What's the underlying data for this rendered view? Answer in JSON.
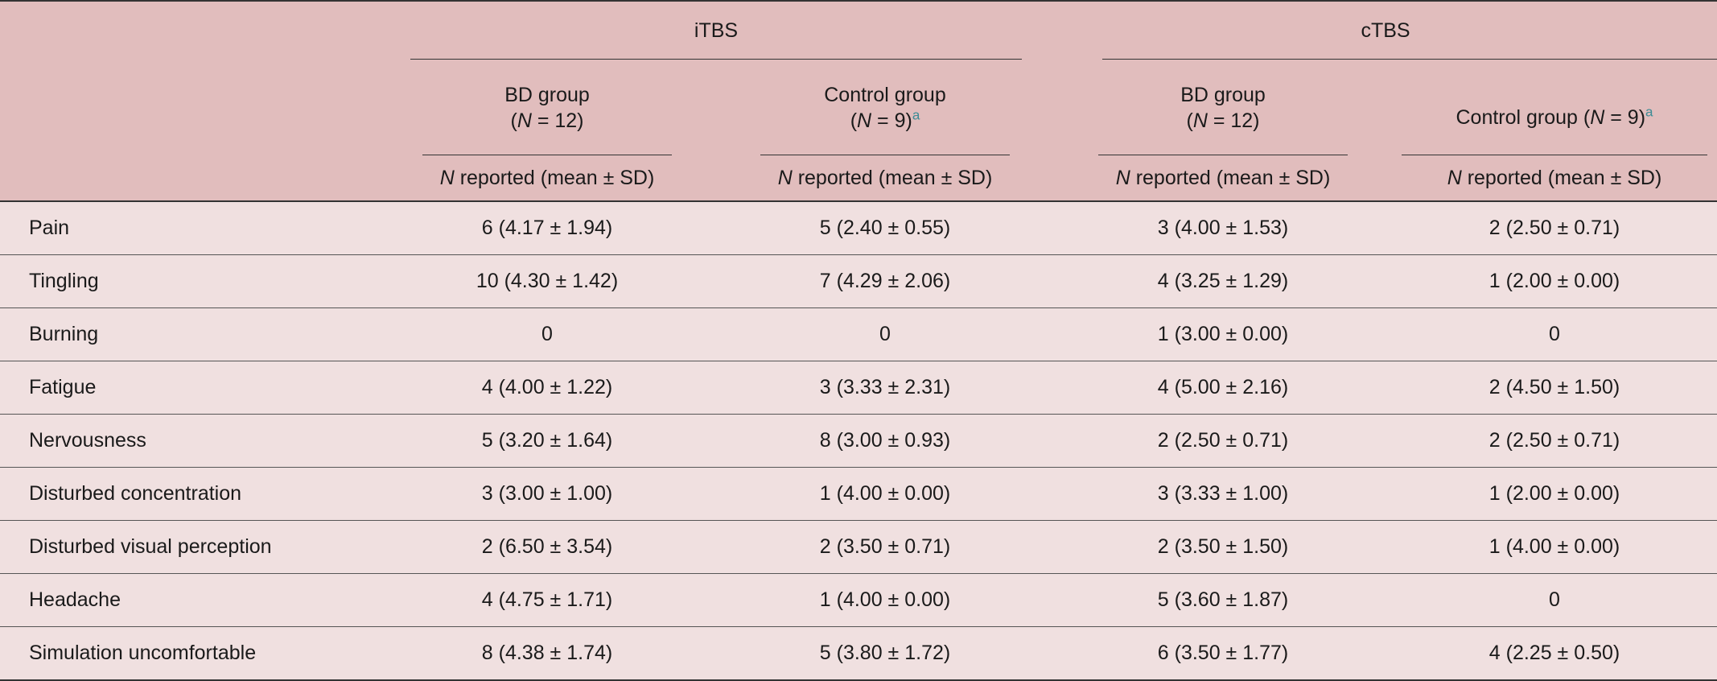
{
  "header": {
    "groups": [
      {
        "label": "iTBS"
      },
      {
        "label": "cTBS"
      }
    ],
    "subgroups": [
      {
        "name": "BD group",
        "n_prefix": "(",
        "n_italic": "N",
        "n_suffix": " = 12)",
        "footnote": ""
      },
      {
        "name": "Control group",
        "n_prefix": "(",
        "n_italic": "N",
        "n_suffix": " = 9)",
        "footnote": "a"
      },
      {
        "name": "BD group",
        "n_prefix": "(",
        "n_italic": "N",
        "n_suffix": " = 12)",
        "footnote": ""
      },
      {
        "name": "Control group (",
        "n_prefix": "",
        "n_italic": "N",
        "n_suffix": " = 9)",
        "footnote": "a"
      }
    ],
    "stat_italic": "N",
    "stat_label": " reported (mean ± SD)"
  },
  "rows": [
    {
      "label": "Pain",
      "values": [
        "6 (4.17 ± 1.94)",
        "5 (2.40 ± 0.55)",
        "3 (4.00 ± 1.53)",
        "2 (2.50 ± 0.71)"
      ]
    },
    {
      "label": "Tingling",
      "values": [
        "10 (4.30 ± 1.42)",
        "7 (4.29 ± 2.06)",
        "4 (3.25 ± 1.29)",
        "1 (2.00 ± 0.00)"
      ]
    },
    {
      "label": "Burning",
      "values": [
        "0",
        "0",
        "1 (3.00 ± 0.00)",
        "0"
      ]
    },
    {
      "label": "Fatigue",
      "values": [
        "4 (4.00 ± 1.22)",
        "3 (3.33 ± 2.31)",
        "4 (5.00 ± 2.16)",
        "2 (4.50 ± 1.50)"
      ]
    },
    {
      "label": "Nervousness",
      "values": [
        "5 (3.20 ± 1.64)",
        "8 (3.00 ± 0.93)",
        "2 (2.50 ± 0.71)",
        "2 (2.50 ± 0.71)"
      ]
    },
    {
      "label": "Disturbed concentration",
      "values": [
        "3 (3.00 ± 1.00)",
        "1 (4.00 ± 0.00)",
        "3 (3.33 ± 1.00)",
        "1 (2.00 ± 0.00)"
      ]
    },
    {
      "label": "Disturbed visual perception",
      "values": [
        "2 (6.50 ± 3.54)",
        "2 (3.50 ± 0.71)",
        "2 (3.50 ± 1.50)",
        "1 (4.00 ± 0.00)"
      ]
    },
    {
      "label": "Headache",
      "values": [
        "4 (4.75 ± 1.71)",
        "1 (4.00 ± 0.00)",
        "5 (3.60 ± 1.87)",
        "0"
      ]
    },
    {
      "label": "Simulation uncomfortable",
      "values": [
        "8 (4.38 ± 1.74)",
        "5 (3.80 ± 1.72)",
        "6 (3.50 ± 1.77)",
        "4 (2.25 ± 0.50)"
      ]
    }
  ]
}
